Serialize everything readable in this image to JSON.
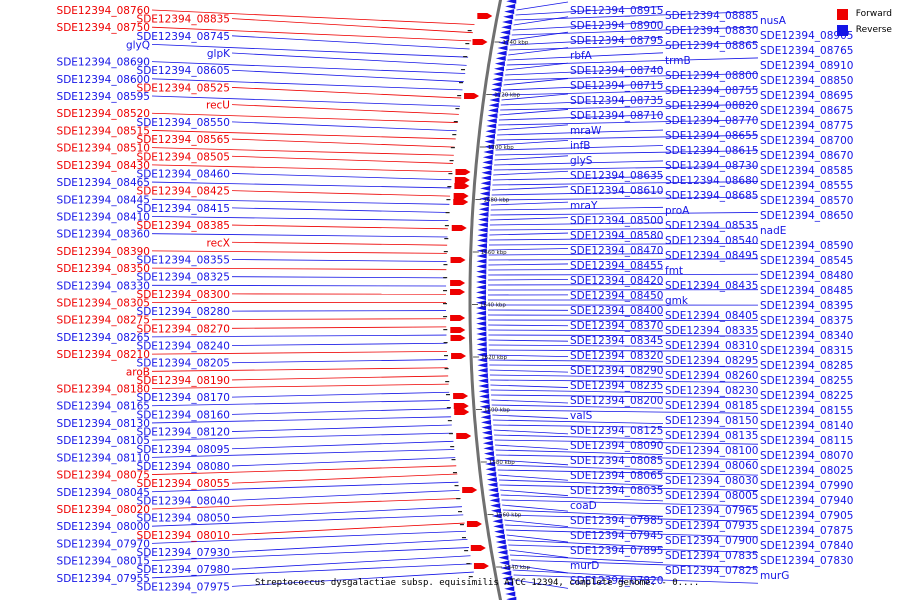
{
  "legend": {
    "forward": {
      "label": "Forward",
      "color": "#ee0000"
    },
    "reverse": {
      "label": "Reverse",
      "color": "#1515e6"
    }
  },
  "caption": "Streptococcus dysgalactiae subsp. equisimilis ATCC 12394, complete genome. - 0....",
  "ticks": [
    "1740 kbp",
    "1720 kbp",
    "1700 kbp",
    "1680 kbp",
    "1660 kbp",
    "1640 kbp",
    "1620 kbp",
    "1600 kbp",
    "1580 kbp",
    "1560 kbp",
    "1540 kbp"
  ],
  "left_labels": [
    {
      "text": "SDE12394_08760",
      "strand": "forward"
    },
    {
      "text": "SDE12394_08835",
      "strand": "forward"
    },
    {
      "text": "SDE12394_08750",
      "strand": "forward"
    },
    {
      "text": "SDE12394_08745",
      "strand": "reverse"
    },
    {
      "text": "glyQ",
      "strand": "reverse"
    },
    {
      "text": "glpK",
      "strand": "reverse"
    },
    {
      "text": "SDE12394_08690",
      "strand": "reverse"
    },
    {
      "text": "SDE12394_08605",
      "strand": "reverse"
    },
    {
      "text": "SDE12394_08600",
      "strand": "reverse"
    },
    {
      "text": "SDE12394_08525",
      "strand": "forward"
    },
    {
      "text": "SDE12394_08595",
      "strand": "reverse"
    },
    {
      "text": "recU",
      "strand": "forward"
    },
    {
      "text": "SDE12394_08520",
      "strand": "forward"
    },
    {
      "text": "SDE12394_08550",
      "strand": "reverse"
    },
    {
      "text": "SDE12394_08515",
      "strand": "forward"
    },
    {
      "text": "SDE12394_08565",
      "strand": "forward"
    },
    {
      "text": "SDE12394_08510",
      "strand": "forward"
    },
    {
      "text": "SDE12394_08505",
      "strand": "forward"
    },
    {
      "text": "SDE12394_08430",
      "strand": "forward"
    },
    {
      "text": "SDE12394_08460",
      "strand": "reverse"
    },
    {
      "text": "SDE12394_08465",
      "strand": "reverse"
    },
    {
      "text": "SDE12394_08425",
      "strand": "forward"
    },
    {
      "text": "SDE12394_08445",
      "strand": "reverse"
    },
    {
      "text": "SDE12394_08415",
      "strand": "reverse"
    },
    {
      "text": "SDE12394_08410",
      "strand": "reverse"
    },
    {
      "text": "SDE12394_08385",
      "strand": "forward"
    },
    {
      "text": "SDE12394_08360",
      "strand": "reverse"
    },
    {
      "text": "recX",
      "strand": "forward"
    },
    {
      "text": "SDE12394_08390",
      "strand": "forward"
    },
    {
      "text": "SDE12394_08355",
      "strand": "reverse"
    },
    {
      "text": "SDE12394_08350",
      "strand": "forward"
    },
    {
      "text": "SDE12394_08325",
      "strand": "reverse"
    },
    {
      "text": "SDE12394_08330",
      "strand": "reverse"
    },
    {
      "text": "SDE12394_08300",
      "strand": "forward"
    },
    {
      "text": "SDE12394_08305",
      "strand": "forward"
    },
    {
      "text": "SDE12394_08280",
      "strand": "reverse"
    },
    {
      "text": "SDE12394_08275",
      "strand": "forward"
    },
    {
      "text": "SDE12394_08270",
      "strand": "forward"
    },
    {
      "text": "SDE12394_08265",
      "strand": "reverse"
    },
    {
      "text": "SDE12394_08240",
      "strand": "reverse"
    },
    {
      "text": "SDE12394_08210",
      "strand": "forward"
    },
    {
      "text": "SDE12394_08205",
      "strand": "reverse"
    },
    {
      "text": "aroB",
      "strand": "forward"
    },
    {
      "text": "SDE12394_08190",
      "strand": "forward"
    },
    {
      "text": "SDE12394_08180",
      "strand": "forward"
    },
    {
      "text": "SDE12394_08170",
      "strand": "reverse"
    },
    {
      "text": "SDE12394_08165",
      "strand": "reverse"
    },
    {
      "text": "SDE12394_08160",
      "strand": "reverse"
    },
    {
      "text": "SDE12394_08130",
      "strand": "reverse"
    },
    {
      "text": "SDE12394_08120",
      "strand": "reverse"
    },
    {
      "text": "SDE12394_08105",
      "strand": "reverse"
    },
    {
      "text": "SDE12394_08095",
      "strand": "reverse"
    },
    {
      "text": "SDE12394_08110",
      "strand": "reverse"
    },
    {
      "text": "SDE12394_08080",
      "strand": "reverse"
    },
    {
      "text": "SDE12394_08075",
      "strand": "forward"
    },
    {
      "text": "SDE12394_08055",
      "strand": "forward"
    },
    {
      "text": "SDE12394_08045",
      "strand": "reverse"
    },
    {
      "text": "SDE12394_08040",
      "strand": "reverse"
    },
    {
      "text": "SDE12394_08020",
      "strand": "forward"
    },
    {
      "text": "SDE12394_08050",
      "strand": "reverse"
    },
    {
      "text": "SDE12394_08000",
      "strand": "reverse"
    },
    {
      "text": "SDE12394_08010",
      "strand": "forward"
    },
    {
      "text": "SDE12394_07970",
      "strand": "reverse"
    },
    {
      "text": "SDE12394_07930",
      "strand": "reverse"
    },
    {
      "text": "SDE12394_08015",
      "strand": "reverse"
    },
    {
      "text": "SDE12394_07980",
      "strand": "reverse"
    },
    {
      "text": "SDE12394_07955",
      "strand": "reverse"
    },
    {
      "text": "SDE12394_07975",
      "strand": "reverse"
    }
  ],
  "right_labels": [
    {
      "text": "SDE12394_08915"
    },
    {
      "text": "SDE12394_08885"
    },
    {
      "text": "nusA"
    },
    {
      "text": "SDE12394_08900"
    },
    {
      "text": "SDE12394_08830"
    },
    {
      "text": "SDE12394_08905"
    },
    {
      "text": "SDE12394_08795"
    },
    {
      "text": "SDE12394_08865"
    },
    {
      "text": "SDE12394_08765"
    },
    {
      "text": "rbfA"
    },
    {
      "text": "trmB"
    },
    {
      "text": "SDE12394_08910"
    },
    {
      "text": "SDE12394_08740"
    },
    {
      "text": "SDE12394_08800"
    },
    {
      "text": "SDE12394_08850"
    },
    {
      "text": "SDE12394_08715"
    },
    {
      "text": "SDE12394_08755"
    },
    {
      "text": "SDE12394_08695"
    },
    {
      "text": "SDE12394_08735"
    },
    {
      "text": "SDE12394_08820"
    },
    {
      "text": "SDE12394_08675"
    },
    {
      "text": "SDE12394_08710"
    },
    {
      "text": "SDE12394_08770"
    },
    {
      "text": "SDE12394_08775"
    },
    {
      "text": "mraW"
    },
    {
      "text": "SDE12394_08655"
    },
    {
      "text": "SDE12394_08700"
    },
    {
      "text": "infB"
    },
    {
      "text": "SDE12394_08615"
    },
    {
      "text": "SDE12394_08670"
    },
    {
      "text": "glyS"
    },
    {
      "text": "SDE12394_08730"
    },
    {
      "text": "SDE12394_08585"
    },
    {
      "text": "SDE12394_08635"
    },
    {
      "text": "SDE12394_08680"
    },
    {
      "text": "SDE12394_08555"
    },
    {
      "text": "SDE12394_08610"
    },
    {
      "text": "SDE12394_08685"
    },
    {
      "text": "SDE12394_08570"
    },
    {
      "text": "mraY"
    },
    {
      "text": "proA"
    },
    {
      "text": "SDE12394_08650"
    },
    {
      "text": "SDE12394_08500"
    },
    {
      "text": "SDE12394_08535"
    },
    {
      "text": "nadE"
    },
    {
      "text": "SDE12394_08580"
    },
    {
      "text": "SDE12394_08540"
    },
    {
      "text": "SDE12394_08590"
    },
    {
      "text": "SDE12394_08470"
    },
    {
      "text": "SDE12394_08495"
    },
    {
      "text": "SDE12394_08545"
    },
    {
      "text": "SDE12394_08455"
    },
    {
      "text": "fmt"
    },
    {
      "text": "SDE12394_08480"
    },
    {
      "text": "SDE12394_08420"
    },
    {
      "text": "SDE12394_08435"
    },
    {
      "text": "SDE12394_08485"
    },
    {
      "text": "SDE12394_08450"
    },
    {
      "text": "gmk"
    },
    {
      "text": "SDE12394_08395"
    },
    {
      "text": "SDE12394_08400"
    },
    {
      "text": "SDE12394_08405"
    },
    {
      "text": "SDE12394_08375"
    },
    {
      "text": "SDE12394_08370"
    },
    {
      "text": "SDE12394_08335"
    },
    {
      "text": "SDE12394_08340"
    },
    {
      "text": "SDE12394_08345"
    },
    {
      "text": "SDE12394_08310"
    },
    {
      "text": "SDE12394_08315"
    },
    {
      "text": "SDE12394_08320"
    },
    {
      "text": "SDE12394_08295"
    },
    {
      "text": "SDE12394_08285"
    },
    {
      "text": "SDE12394_08290"
    },
    {
      "text": "SDE12394_08260"
    },
    {
      "text": "SDE12394_08255"
    },
    {
      "text": "SDE12394_08235"
    },
    {
      "text": "SDE12394_08230"
    },
    {
      "text": "SDE12394_08225"
    },
    {
      "text": "SDE12394_08200"
    },
    {
      "text": "SDE12394_08185"
    },
    {
      "text": "SDE12394_08155"
    },
    {
      "text": "valS"
    },
    {
      "text": "SDE12394_08150"
    },
    {
      "text": "SDE12394_08140"
    },
    {
      "text": "SDE12394_08125"
    },
    {
      "text": "SDE12394_08135"
    },
    {
      "text": "SDE12394_08115"
    },
    {
      "text": "SDE12394_08090"
    },
    {
      "text": "SDE12394_08100"
    },
    {
      "text": "SDE12394_08070"
    },
    {
      "text": "SDE12394_08085"
    },
    {
      "text": "SDE12394_08060"
    },
    {
      "text": "SDE12394_08025"
    },
    {
      "text": "SDE12394_08065"
    },
    {
      "text": "SDE12394_08030"
    },
    {
      "text": "SDE12394_07990"
    },
    {
      "text": "SDE12394_08035"
    },
    {
      "text": "SDE12394_08005"
    },
    {
      "text": "SDE12394_07940"
    },
    {
      "text": "coaD"
    },
    {
      "text": "SDE12394_07965"
    },
    {
      "text": "SDE12394_07905"
    },
    {
      "text": "SDE12394_07985"
    },
    {
      "text": "SDE12394_07935"
    },
    {
      "text": "SDE12394_07875"
    },
    {
      "text": "SDE12394_07945"
    },
    {
      "text": "SDE12394_07900"
    },
    {
      "text": "SDE12394_07840"
    },
    {
      "text": "SDE12394_07895"
    },
    {
      "text": "SDE12394_07835"
    },
    {
      "text": "SDE12394_07830"
    },
    {
      "text": "murD"
    },
    {
      "text": "SDE12394_07825"
    },
    {
      "text": "murG"
    },
    {
      "text": "SDE12394_07820"
    }
  ]
}
